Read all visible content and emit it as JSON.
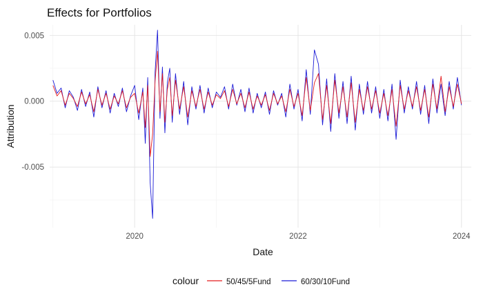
{
  "chart_data": {
    "type": "line",
    "title": "Effects for Portfolios",
    "xlabel": "Date",
    "ylabel": "Attribution",
    "x_ticks": [
      {
        "value": 2020,
        "label": "2020"
      },
      {
        "value": 2022,
        "label": "2022"
      },
      {
        "value": 2024,
        "label": "2024"
      }
    ],
    "y_ticks": [
      {
        "value": -0.005,
        "label": "-0.005"
      },
      {
        "value": 0.0,
        "label": "0.000"
      },
      {
        "value": 0.005,
        "label": "0.005"
      }
    ],
    "xlim": [
      2018.96,
      2024.12
    ],
    "ylim": [
      -0.0096,
      0.0058
    ],
    "grid": true,
    "legend_position": "bottom",
    "legend_title": "colour",
    "series": [
      {
        "name": "50/45/5Fund",
        "color": "#e41a1c",
        "x": [
          2019.0,
          2019.05,
          2019.1,
          2019.15,
          2019.2,
          2019.25,
          2019.3,
          2019.35,
          2019.4,
          2019.45,
          2019.5,
          2019.55,
          2019.6,
          2019.65,
          2019.7,
          2019.75,
          2019.8,
          2019.85,
          2019.9,
          2019.95,
          2020.0,
          2020.05,
          2020.1,
          2020.13,
          2020.16,
          2020.19,
          2020.22,
          2020.25,
          2020.28,
          2020.31,
          2020.34,
          2020.37,
          2020.4,
          2020.43,
          2020.46,
          2020.5,
          2020.55,
          2020.6,
          2020.65,
          2020.7,
          2020.75,
          2020.8,
          2020.85,
          2020.9,
          2020.95,
          2021.0,
          2021.05,
          2021.1,
          2021.15,
          2021.2,
          2021.25,
          2021.3,
          2021.35,
          2021.4,
          2021.45,
          2021.5,
          2021.55,
          2021.6,
          2021.65,
          2021.7,
          2021.75,
          2021.8,
          2021.85,
          2021.9,
          2021.95,
          2022.0,
          2022.05,
          2022.1,
          2022.15,
          2022.2,
          2022.25,
          2022.3,
          2022.35,
          2022.4,
          2022.45,
          2022.5,
          2022.55,
          2022.6,
          2022.65,
          2022.7,
          2022.75,
          2022.8,
          2022.85,
          2022.9,
          2022.95,
          2023.0,
          2023.05,
          2023.1,
          2023.15,
          2023.2,
          2023.25,
          2023.3,
          2023.35,
          2023.4,
          2023.45,
          2023.5,
          2023.55,
          2023.6,
          2023.65,
          2023.7,
          2023.75,
          2023.8,
          2023.85,
          2023.9,
          2023.95,
          2024.0
        ],
        "y": [
          0.0012,
          0.0004,
          0.0008,
          -0.0003,
          0.0006,
          0.0002,
          -0.0004,
          0.0007,
          -0.0002,
          0.0005,
          -0.0008,
          0.0009,
          -0.0003,
          0.0006,
          -0.0006,
          0.0004,
          -0.0002,
          0.0008,
          -0.0005,
          0.0003,
          0.0006,
          -0.0009,
          0.0007,
          -0.002,
          0.0012,
          -0.0042,
          -0.0025,
          0.0015,
          0.0038,
          -0.0008,
          0.0021,
          -0.0016,
          0.0009,
          0.0018,
          -0.0011,
          0.0016,
          -0.0006,
          0.0011,
          -0.0012,
          0.0008,
          -0.0004,
          0.0009,
          -0.0006,
          0.0007,
          -0.0003,
          0.0005,
          0.0002,
          0.0008,
          -0.0004,
          0.0009,
          -0.0002,
          0.0006,
          -0.0005,
          0.0007,
          -0.0006,
          0.0004,
          -0.0003,
          0.0005,
          -0.0007,
          0.0006,
          -0.0002,
          0.0004,
          -0.0008,
          0.0009,
          -0.0004,
          0.0006,
          -0.0011,
          0.0018,
          -0.0007,
          0.0014,
          0.0021,
          -0.0014,
          0.0012,
          -0.0017,
          0.0016,
          -0.0009,
          0.0011,
          -0.0012,
          0.0014,
          -0.0016,
          0.0009,
          -0.0007,
          0.0011,
          -0.0006,
          0.0008,
          -0.0009,
          0.0006,
          -0.0011,
          0.0009,
          -0.0019,
          0.0012,
          -0.0006,
          0.0008,
          -0.0004,
          0.0011,
          -0.0007,
          0.0009,
          -0.0012,
          0.0013,
          -0.0006,
          0.0019,
          -0.0008,
          0.0011,
          -0.0004,
          0.0013,
          -0.0002
        ]
      },
      {
        "name": "60/30/10Fund",
        "color": "#1a1ad6",
        "x": [
          2019.0,
          2019.05,
          2019.1,
          2019.15,
          2019.2,
          2019.25,
          2019.3,
          2019.35,
          2019.4,
          2019.45,
          2019.5,
          2019.55,
          2019.6,
          2019.65,
          2019.7,
          2019.75,
          2019.8,
          2019.85,
          2019.9,
          2019.95,
          2020.0,
          2020.05,
          2020.1,
          2020.13,
          2020.16,
          2020.19,
          2020.22,
          2020.25,
          2020.28,
          2020.31,
          2020.34,
          2020.37,
          2020.4,
          2020.43,
          2020.46,
          2020.5,
          2020.55,
          2020.6,
          2020.65,
          2020.7,
          2020.75,
          2020.8,
          2020.85,
          2020.9,
          2020.95,
          2021.0,
          2021.05,
          2021.1,
          2021.15,
          2021.2,
          2021.25,
          2021.3,
          2021.35,
          2021.4,
          2021.45,
          2021.5,
          2021.55,
          2021.6,
          2021.65,
          2021.7,
          2021.75,
          2021.8,
          2021.85,
          2021.9,
          2021.95,
          2022.0,
          2022.05,
          2022.1,
          2022.15,
          2022.2,
          2022.25,
          2022.3,
          2022.35,
          2022.4,
          2022.45,
          2022.5,
          2022.55,
          2022.6,
          2022.65,
          2022.7,
          2022.75,
          2022.8,
          2022.85,
          2022.9,
          2022.95,
          2023.0,
          2023.05,
          2023.1,
          2023.15,
          2023.2,
          2023.25,
          2023.3,
          2023.35,
          2023.4,
          2023.45,
          2023.5,
          2023.55,
          2023.6,
          2023.65,
          2023.7,
          2023.75,
          2023.8,
          2023.85,
          2023.9,
          2023.95,
          2024.0
        ],
        "y": [
          0.0016,
          0.0006,
          0.001,
          -0.0005,
          0.0008,
          0.0003,
          -0.0007,
          0.0009,
          -0.0004,
          0.0007,
          -0.0012,
          0.0011,
          -0.0005,
          0.0008,
          -0.0009,
          0.0006,
          -0.0004,
          0.001,
          -0.0008,
          0.0004,
          0.0012,
          -0.0014,
          0.001,
          -0.0032,
          0.0018,
          -0.0062,
          -0.0089,
          0.0022,
          0.0054,
          -0.0013,
          0.0026,
          -0.0024,
          0.0014,
          0.0025,
          -0.0016,
          0.0021,
          -0.001,
          0.0015,
          -0.0018,
          0.0011,
          -0.0006,
          0.0012,
          -0.0009,
          0.001,
          -0.0005,
          0.0007,
          0.0003,
          0.0011,
          -0.0006,
          0.0013,
          -0.0003,
          0.0009,
          -0.0008,
          0.001,
          -0.0009,
          0.0006,
          -0.0005,
          0.0007,
          -0.001,
          0.0008,
          -0.0003,
          0.0006,
          -0.0012,
          0.0013,
          -0.0006,
          0.0009,
          -0.0015,
          0.0024,
          -0.001,
          0.0039,
          0.0028,
          -0.0018,
          0.0017,
          -0.0023,
          0.0021,
          -0.0013,
          0.0015,
          -0.0017,
          0.0019,
          -0.0022,
          0.0013,
          -0.001,
          0.0015,
          -0.0009,
          0.0011,
          -0.0013,
          0.0009,
          -0.0015,
          0.0013,
          -0.0029,
          0.0016,
          -0.0009,
          0.0011,
          -0.0006,
          0.0015,
          -0.001,
          0.0012,
          -0.0017,
          0.0017,
          -0.0009,
          0.0013,
          -0.0011,
          0.0015,
          -0.0006,
          0.0018,
          -0.0003
        ]
      }
    ]
  }
}
